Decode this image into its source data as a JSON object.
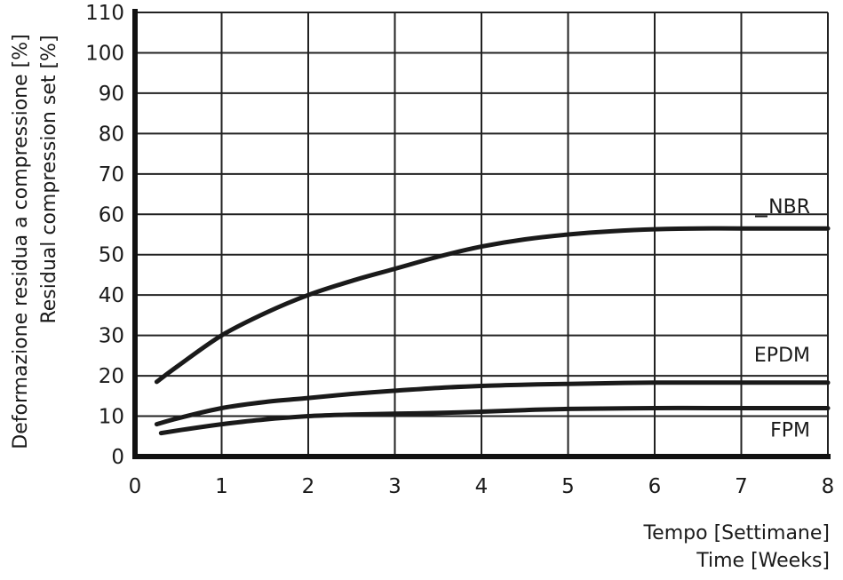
{
  "chart_data": {
    "type": "line",
    "xlabel": [
      "Tempo [Settimane]",
      "Time [Weeks]"
    ],
    "ylabel": [
      "Deformazione residua a compressione [%]",
      "Residual compression set [%]"
    ],
    "xlim": [
      0,
      8
    ],
    "ylim": [
      0,
      110
    ],
    "x_ticks": [
      0,
      1,
      2,
      3,
      4,
      5,
      6,
      7,
      8
    ],
    "y_ticks": [
      0,
      10,
      20,
      30,
      40,
      50,
      60,
      70,
      80,
      90,
      100,
      110
    ],
    "grid": true,
    "series": [
      {
        "name": "NBR",
        "points": [
          [
            0.25,
            18.5
          ],
          [
            0.5,
            22.5
          ],
          [
            1,
            30
          ],
          [
            1.5,
            35.5
          ],
          [
            2,
            40
          ],
          [
            2.5,
            43.5
          ],
          [
            3,
            46.5
          ],
          [
            3.5,
            49.5
          ],
          [
            4,
            52
          ],
          [
            4.5,
            53.8
          ],
          [
            5,
            55
          ],
          [
            5.5,
            55.8
          ],
          [
            6,
            56.3
          ],
          [
            6.5,
            56.5
          ],
          [
            7,
            56.5
          ],
          [
            8,
            56.5
          ]
        ]
      },
      {
        "name": "EPDM",
        "points": [
          [
            0.25,
            8
          ],
          [
            0.5,
            9.5
          ],
          [
            1,
            12
          ],
          [
            1.5,
            13.5
          ],
          [
            2,
            14.5
          ],
          [
            2.5,
            15.5
          ],
          [
            3,
            16.3
          ],
          [
            3.5,
            17
          ],
          [
            4,
            17.5
          ],
          [
            4.5,
            17.8
          ],
          [
            5,
            18
          ],
          [
            6,
            18.3
          ],
          [
            7,
            18.3
          ],
          [
            8,
            18.3
          ]
        ]
      },
      {
        "name": "FPM",
        "points": [
          [
            0.3,
            5.8
          ],
          [
            0.6,
            6.8
          ],
          [
            1,
            8
          ],
          [
            1.5,
            9.2
          ],
          [
            2,
            10
          ],
          [
            2.5,
            10.4
          ],
          [
            3,
            10.6
          ],
          [
            3.5,
            10.8
          ],
          [
            4,
            11.1
          ],
          [
            4.5,
            11.5
          ],
          [
            5,
            11.8
          ],
          [
            6,
            12
          ],
          [
            7,
            12
          ],
          [
            8,
            12
          ]
        ]
      }
    ]
  }
}
